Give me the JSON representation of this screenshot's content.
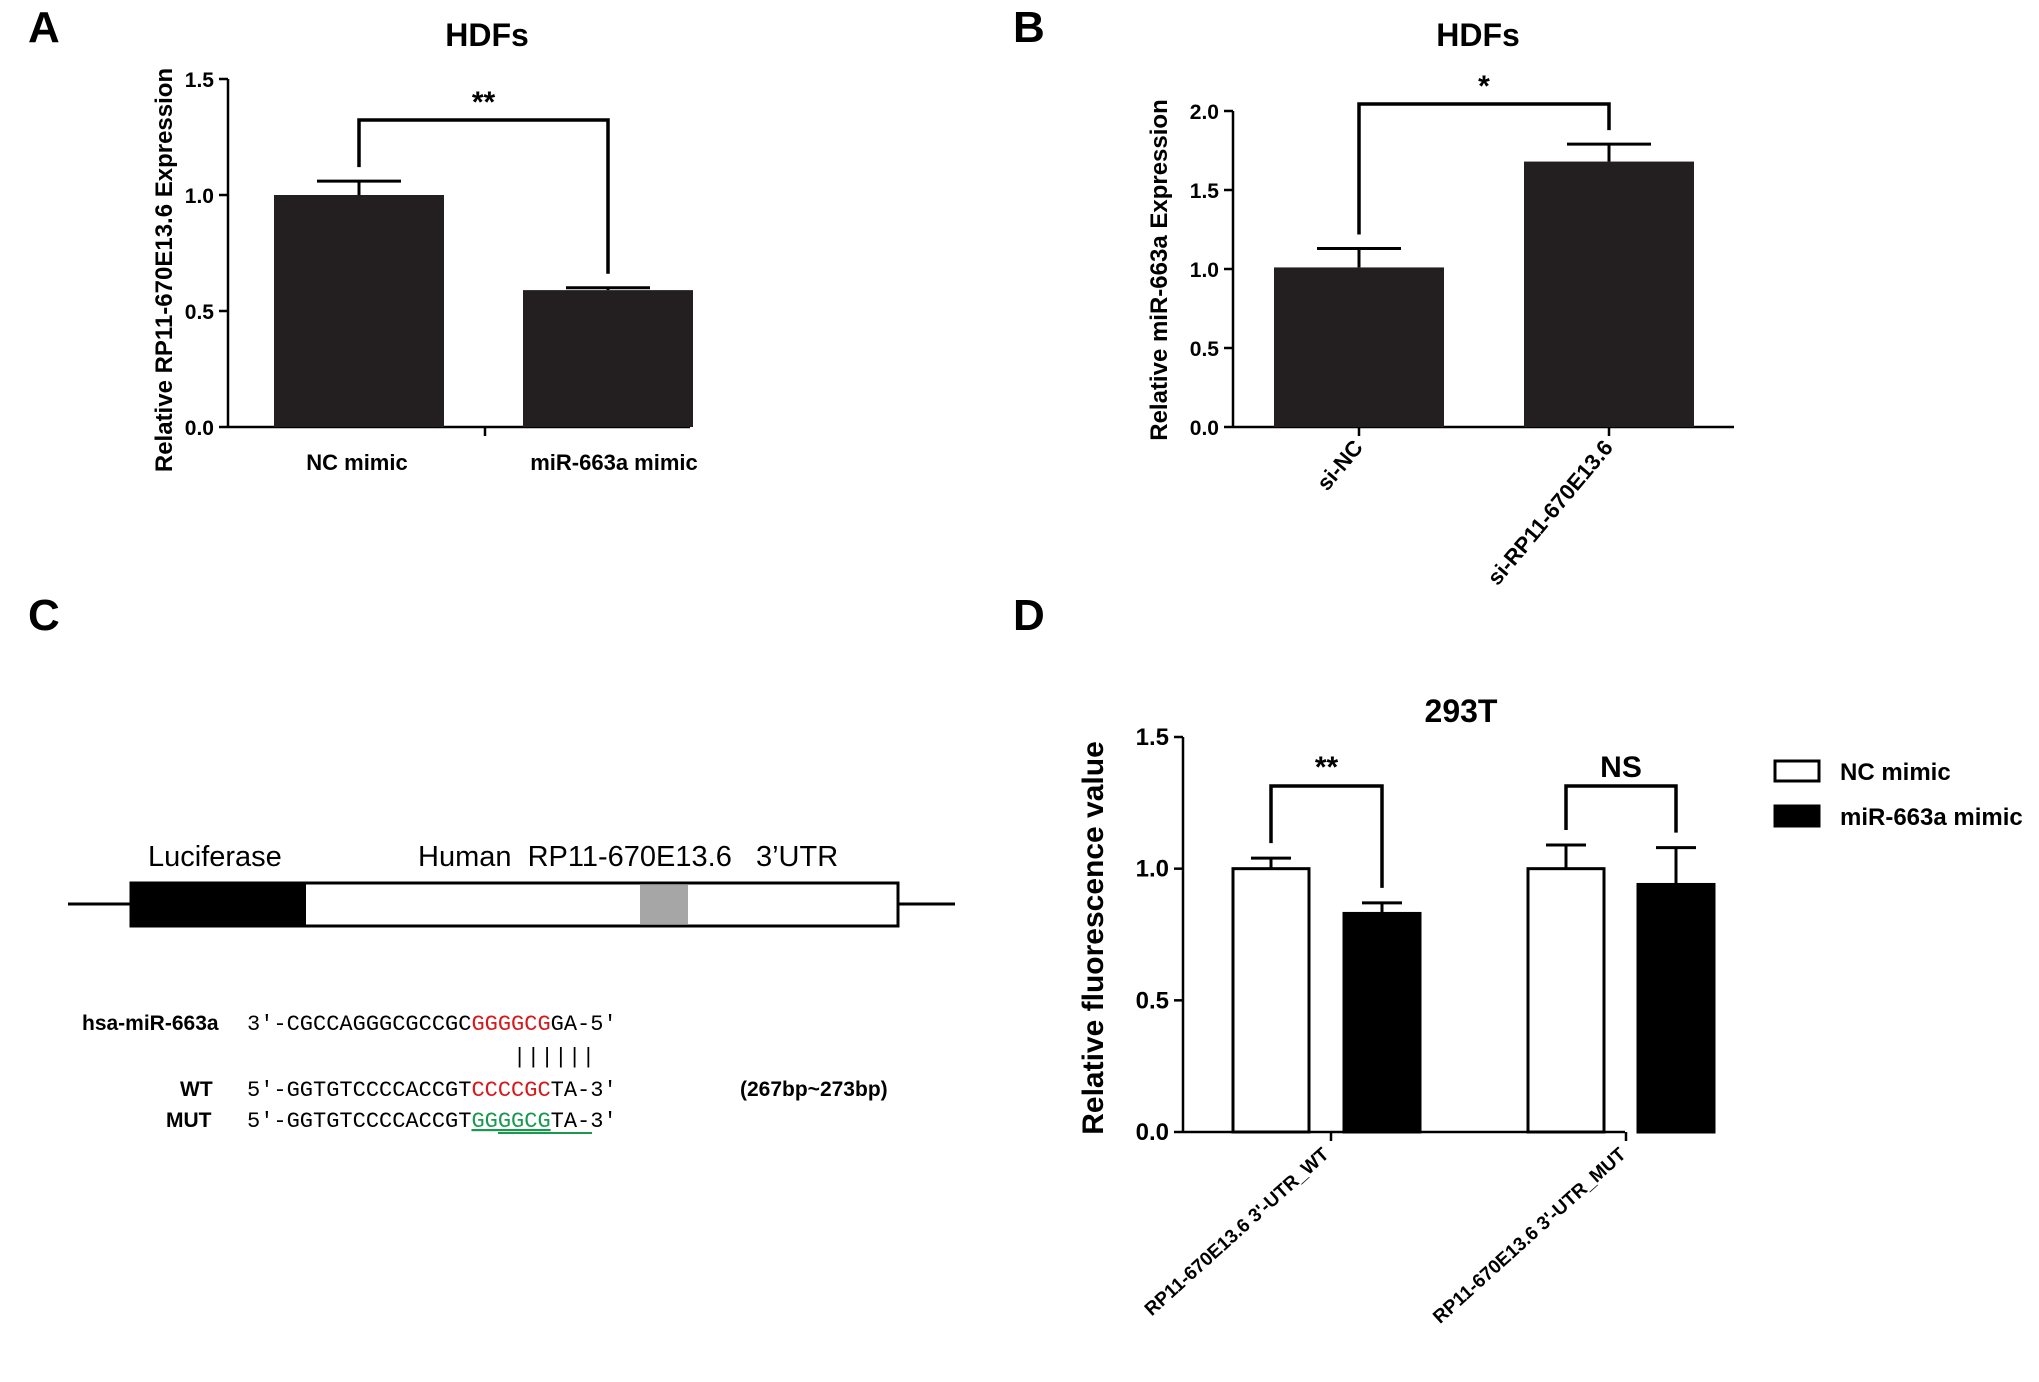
{
  "panels": {
    "a": "A",
    "b": "B",
    "c": "C",
    "d": "D"
  },
  "chart_data": [
    {
      "id": "A",
      "type": "bar",
      "title": "HDFs",
      "xlabel": "",
      "ylabel": "Relative RP11-670E13.6 Expression",
      "ylim": [
        0,
        1.5
      ],
      "yticks": [
        "0.0",
        "0.5",
        "1.0",
        "1.5"
      ],
      "categories": [
        "NC mimic",
        "miR-663a mimic"
      ],
      "values": [
        1.0,
        0.59
      ],
      "errors": [
        0.06,
        0.01
      ],
      "significance": "**",
      "bar_color": "#231f20"
    },
    {
      "id": "B",
      "type": "bar",
      "title": "HDFs",
      "xlabel": "",
      "ylabel": "Relative miR-663a Expression",
      "ylim": [
        0,
        2.0
      ],
      "yticks": [
        "0.0",
        "0.5",
        "1.0",
        "1.5",
        "2.0"
      ],
      "categories": [
        "si-NC",
        "si-RP11-670E13.6"
      ],
      "values": [
        1.01,
        1.68
      ],
      "errors": [
        0.12,
        0.11
      ],
      "significance": "*",
      "bar_color": "#231f20"
    },
    {
      "id": "D",
      "type": "bar",
      "title": "293T",
      "xlabel": "",
      "ylabel": "Relative fluorescence value",
      "ylim": [
        0,
        1.5
      ],
      "yticks": [
        "0.0",
        "0.5",
        "1.0",
        "1.5"
      ],
      "categories": [
        "RP11-670E13.6 3'-UTR_WT",
        "RP11-670E13.6 3'-UTR_MUT"
      ],
      "series": [
        {
          "name": "NC mimic",
          "values": [
            1.0,
            1.0
          ],
          "errors": [
            0.04,
            0.09
          ],
          "fill": "#ffffff"
        },
        {
          "name": "miR-663a mimic",
          "values": [
            0.83,
            0.94
          ],
          "errors": [
            0.04,
            0.14
          ],
          "fill": "#000000"
        }
      ],
      "significance": [
        "**",
        "NS"
      ],
      "legend": "top-right"
    }
  ],
  "diagram": {
    "luciferase_label": "Luciferase",
    "utr_label": "Human  RP11-670E13.6   3’UTR",
    "mirna_name": "hsa-miR-663a",
    "mirna_prefix": "3′-CGCCAGGGCGCCGC",
    "mirna_seed": "GGGGCG",
    "mirna_suffix": "GA-5′",
    "pairing": "||||||",
    "wt_label": "WT",
    "wt_prefix": "5′-GGTGTCCCCACCGT",
    "wt_site": "CCCCGC",
    "wt_suffix": "TA-3′",
    "position": "(267bp~273bp)",
    "mut_label": "MUT",
    "mut_prefix": "5′-GGTGTCCCCACCGT",
    "mut_site": "GGGGCG",
    "mut_suffix": "TA-3′",
    "seed_color": "#d7191c",
    "mut_color": "#1a9850",
    "site_box_color": "#a6a6a6"
  }
}
